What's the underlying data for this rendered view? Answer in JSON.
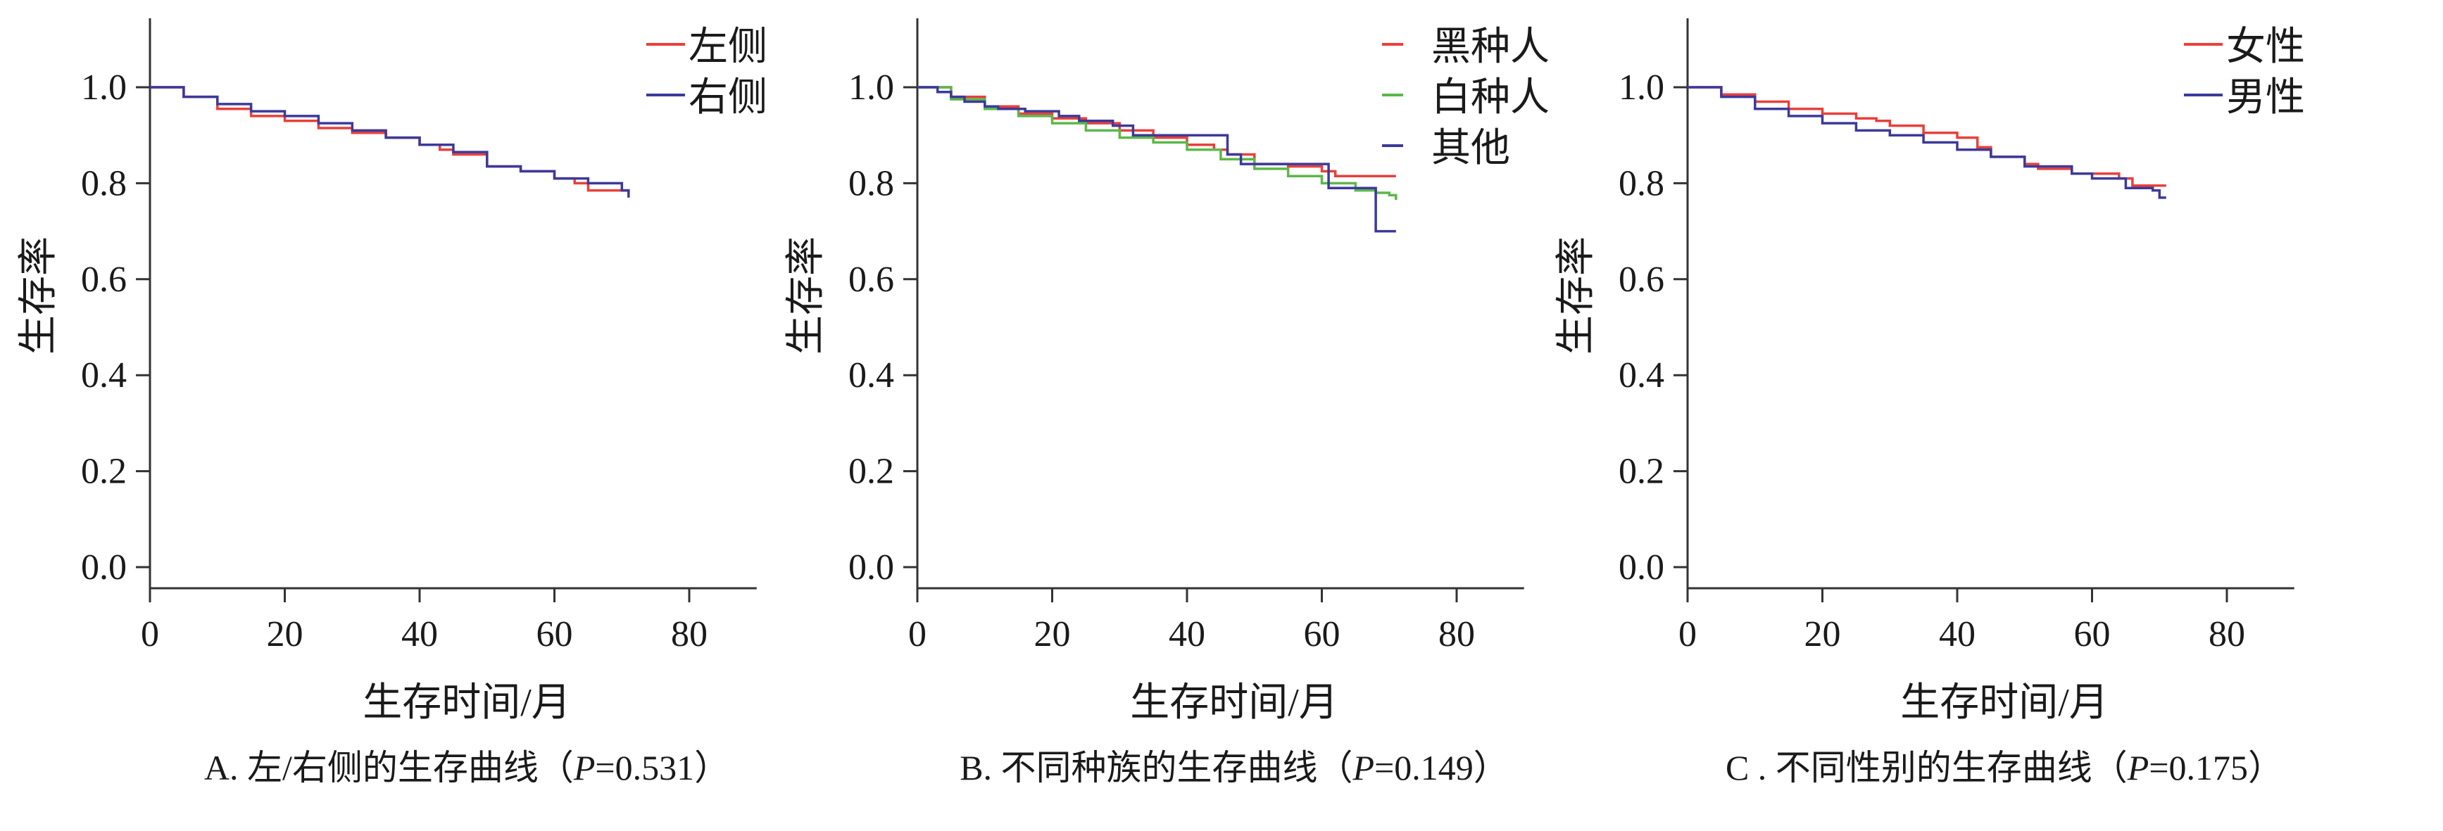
{
  "chart_data": [
    {
      "type": "line",
      "step": true,
      "caption_prefix": "A. 左/右侧的生存曲线（",
      "caption_p": "P",
      "caption_suffix": "=0.531）",
      "xlabel": "生存时间/月",
      "ylabel": "生存率",
      "xlim": [
        0,
        90
      ],
      "ylim": [
        -0.05,
        1.14
      ],
      "xticks": [
        "0",
        "20",
        "40",
        "60",
        "80"
      ],
      "yticks": [
        "0.0",
        "0.2",
        "0.4",
        "0.6",
        "0.8",
        "1.0"
      ],
      "grid": false,
      "legend_position": "top-right",
      "series": [
        {
          "name": "左侧",
          "color": "#e8403c",
          "x": [
            0,
            5,
            10,
            15,
            20,
            25,
            30,
            35,
            40,
            43,
            45,
            50,
            55,
            60,
            63,
            65,
            71
          ],
          "y": [
            1,
            0.98,
            0.955,
            0.94,
            0.93,
            0.915,
            0.905,
            0.895,
            0.88,
            0.87,
            0.86,
            0.835,
            0.825,
            0.81,
            0.8,
            0.785,
            0.78
          ]
        },
        {
          "name": "右侧",
          "color": "#3c3a9a",
          "x": [
            0,
            5,
            10,
            15,
            20,
            25,
            30,
            35,
            40,
            45,
            50,
            55,
            60,
            65,
            70,
            71
          ],
          "y": [
            1,
            0.98,
            0.965,
            0.95,
            0.94,
            0.925,
            0.91,
            0.895,
            0.88,
            0.865,
            0.835,
            0.825,
            0.81,
            0.8,
            0.785,
            0.77
          ]
        }
      ]
    },
    {
      "type": "line",
      "step": true,
      "caption_prefix": "B. 不同种族的生存曲线（",
      "caption_p": "P",
      "caption_suffix": "=0.149）",
      "xlabel": "生存时间/月",
      "ylabel": "生存率",
      "xlim": [
        0,
        90
      ],
      "ylim": [
        -0.05,
        1.14
      ],
      "xticks": [
        "0",
        "20",
        "40",
        "60",
        "80"
      ],
      "yticks": [
        "0.0",
        "0.2",
        "0.4",
        "0.6",
        "0.8",
        "1.0"
      ],
      "grid": false,
      "legend_position": "top-right",
      "series": [
        {
          "name": "黑种人",
          "color": "#e8403c",
          "x": [
            0,
            5,
            10,
            15,
            20,
            25,
            30,
            35,
            40,
            44,
            46,
            50,
            55,
            60,
            62,
            71
          ],
          "y": [
            1,
            0.98,
            0.96,
            0.945,
            0.935,
            0.925,
            0.91,
            0.895,
            0.88,
            0.87,
            0.86,
            0.84,
            0.835,
            0.825,
            0.815,
            0.815
          ]
        },
        {
          "name": "白种人",
          "color": "#5cb84a",
          "x": [
            0,
            5,
            10,
            15,
            20,
            25,
            30,
            35,
            40,
            45,
            50,
            55,
            60,
            65,
            68,
            70,
            71
          ],
          "y": [
            1,
            0.975,
            0.955,
            0.94,
            0.925,
            0.91,
            0.895,
            0.885,
            0.87,
            0.85,
            0.83,
            0.815,
            0.8,
            0.785,
            0.78,
            0.775,
            0.765
          ]
        },
        {
          "name": "其他",
          "color": "#3c3a9a",
          "x": [
            0,
            3,
            5,
            7,
            10,
            12,
            16,
            21,
            24,
            29,
            32,
            46,
            48,
            61,
            68,
            71
          ],
          "y": [
            1,
            0.99,
            0.98,
            0.97,
            0.96,
            0.955,
            0.95,
            0.94,
            0.93,
            0.92,
            0.9,
            0.86,
            0.84,
            0.79,
            0.7,
            0.7
          ]
        }
      ]
    },
    {
      "type": "line",
      "step": true,
      "caption_prefix": "C . 不同性别的生存曲线（",
      "caption_p": "P",
      "caption_suffix": "=0.175）",
      "xlabel": "生存时间/月",
      "ylabel": "生存率",
      "xlim": [
        0,
        90
      ],
      "ylim": [
        -0.05,
        1.14
      ],
      "xticks": [
        "0",
        "20",
        "40",
        "60",
        "80"
      ],
      "yticks": [
        "0.0",
        "0.2",
        "0.4",
        "0.6",
        "0.8",
        "1.0"
      ],
      "grid": false,
      "legend_position": "top-right",
      "series": [
        {
          "name": "女性",
          "color": "#e8403c",
          "x": [
            0,
            5,
            10,
            15,
            20,
            25,
            28,
            30,
            35,
            40,
            43,
            45,
            50,
            52,
            57,
            64,
            66,
            71
          ],
          "y": [
            1,
            0.985,
            0.97,
            0.955,
            0.945,
            0.935,
            0.93,
            0.92,
            0.905,
            0.895,
            0.875,
            0.855,
            0.84,
            0.83,
            0.82,
            0.81,
            0.795,
            0.795
          ]
        },
        {
          "name": "男性",
          "color": "#3c3a9a",
          "x": [
            0,
            5,
            10,
            15,
            20,
            25,
            30,
            35,
            40,
            45,
            50,
            57,
            60,
            65,
            69,
            70,
            71
          ],
          "y": [
            1,
            0.98,
            0.955,
            0.94,
            0.925,
            0.91,
            0.9,
            0.885,
            0.87,
            0.855,
            0.835,
            0.82,
            0.81,
            0.79,
            0.785,
            0.77,
            0.77
          ]
        }
      ]
    }
  ]
}
